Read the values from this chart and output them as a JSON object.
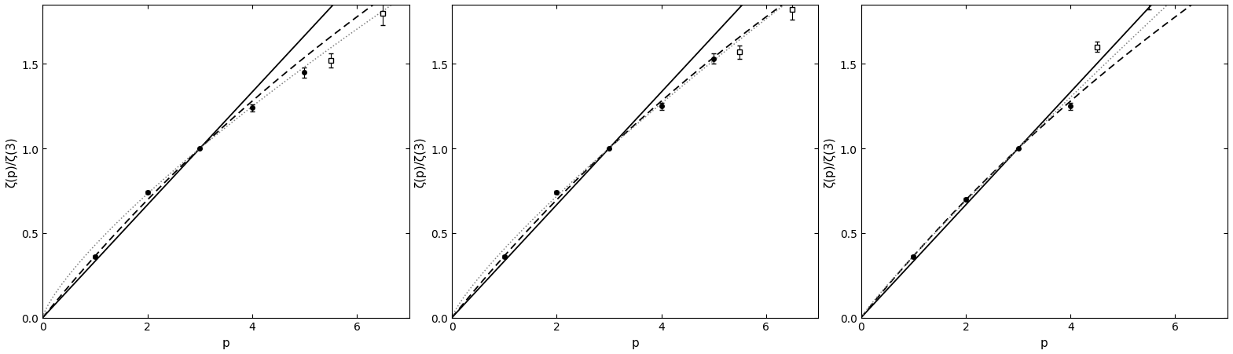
{
  "subplots": [
    {
      "xlabel": "p",
      "ylabel": "ζ(p)/ζ(3)",
      "xlim": [
        0,
        7.0
      ],
      "ylim": [
        0,
        1.85
      ],
      "xticks": [
        0,
        2,
        4,
        6
      ],
      "yticks": [
        0,
        0.5,
        1,
        1.5
      ],
      "data_circles": {
        "x": [
          1,
          2,
          3,
          4,
          5
        ],
        "y": [
          0.36,
          0.74,
          1.0,
          1.24,
          1.45
        ],
        "yerr": [
          0.01,
          0.01,
          0.0,
          0.02,
          0.03
        ]
      },
      "data_squares": {
        "x": [
          5.5,
          6.5
        ],
        "y": [
          1.52,
          1.8
        ],
        "yerr": [
          0.04,
          0.07
        ]
      },
      "solid_slope": 0.3333,
      "dashed_beta": 0.696,
      "dotted_beta": 0.77
    },
    {
      "xlabel": "p",
      "ylabel": "ζ(p)/ζ(3)",
      "xlim": [
        0,
        7.0
      ],
      "ylim": [
        0,
        1.85
      ],
      "xticks": [
        0,
        2,
        4,
        6
      ],
      "yticks": [
        0,
        0.5,
        1,
        1.5
      ],
      "data_circles": {
        "x": [
          1,
          2,
          3,
          4,
          5
        ],
        "y": [
          0.36,
          0.74,
          1.0,
          1.25,
          1.53
        ],
        "yerr": [
          0.01,
          0.01,
          0.0,
          0.02,
          0.03
        ]
      },
      "data_squares": {
        "x": [
          5.5,
          6.5
        ],
        "y": [
          1.57,
          1.82
        ],
        "yerr": [
          0.04,
          0.06
        ]
      },
      "solid_slope": 0.3333,
      "dashed_beta": 0.696,
      "dotted_beta": 0.82
    },
    {
      "xlabel": "p",
      "ylabel": "ζ(p)/ζ(3)",
      "xlim": [
        0,
        7.0
      ],
      "ylim": [
        0,
        1.85
      ],
      "xticks": [
        0,
        2,
        4,
        6
      ],
      "yticks": [
        0,
        0.5,
        1,
        1.5
      ],
      "data_circles": {
        "x": [
          1,
          2,
          3,
          4
        ],
        "y": [
          0.36,
          0.7,
          1.0,
          1.25
        ],
        "yerr": [
          0.01,
          0.01,
          0.0,
          0.02
        ]
      },
      "data_squares": {
        "x": [
          4.5,
          5.5
        ],
        "y": [
          1.6,
          1.88
        ],
        "yerr": [
          0.03,
          0.06
        ]
      },
      "solid_slope": 0.3333,
      "dashed_beta": 0.696,
      "dotted_beta": 0.92
    }
  ],
  "background_color": "#ffffff"
}
